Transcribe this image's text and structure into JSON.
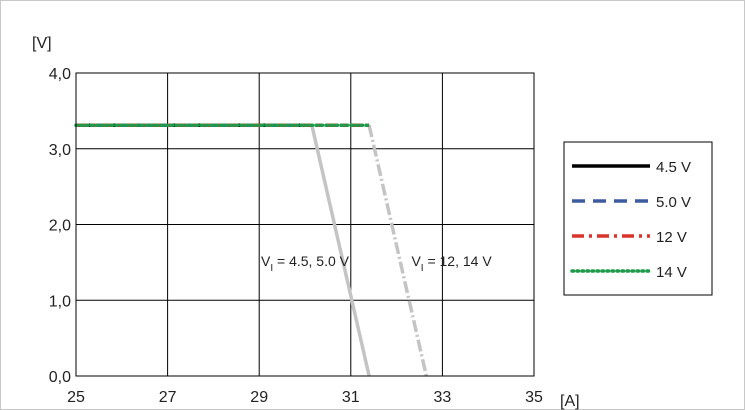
{
  "chart_data": {
    "type": "line",
    "ylabel": "[V]",
    "xlabel": "[A]",
    "xlim": [
      25,
      35
    ],
    "ylim": [
      0,
      4
    ],
    "x_ticks": [
      "25",
      "27",
      "29",
      "31",
      "33",
      "35"
    ],
    "y_ticks": [
      "0,0",
      "1,0",
      "2,0",
      "3,0",
      "4,0"
    ],
    "grid": true,
    "legend_placement": "right",
    "series": [
      {
        "name": "4.5 V",
        "color": "#000000",
        "style": "solid",
        "points": [
          [
            25.0,
            3.31
          ],
          [
            30.15,
            3.31
          ],
          [
            31.4,
            0.0
          ]
        ]
      },
      {
        "name": "5.0 V",
        "color": "#3f5b9f",
        "style": "dashed",
        "points": [
          [
            25.0,
            3.31
          ],
          [
            30.15,
            3.31
          ],
          [
            31.4,
            0.0
          ]
        ]
      },
      {
        "name": "12 V",
        "color": "#d9342b",
        "style": "dashdot",
        "points": [
          [
            25.0,
            3.31
          ],
          [
            31.4,
            3.31
          ],
          [
            32.65,
            0.0
          ]
        ]
      },
      {
        "name": "14 V",
        "color": "#1f9a4a",
        "style": "dotted",
        "points": [
          [
            25.0,
            3.31
          ],
          [
            31.4,
            3.31
          ],
          [
            32.65,
            0.0
          ]
        ]
      }
    ],
    "annotations": [
      {
        "pre": "V",
        "sub": "I",
        "post": " = 4.5, 5.0 V",
        "x": 30.0,
        "y": 1.45
      },
      {
        "pre": "V",
        "sub": "I",
        "post": " = 12, 14 V",
        "x": 33.2,
        "y": 1.45
      }
    ]
  }
}
